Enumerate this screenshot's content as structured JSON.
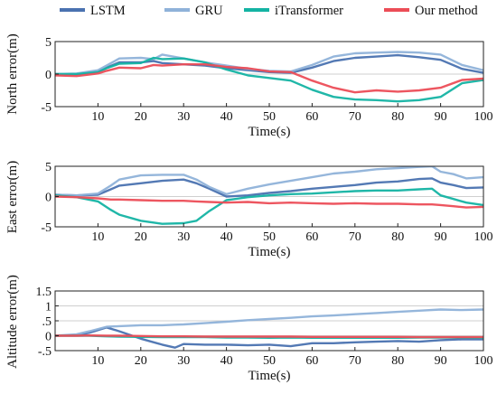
{
  "legend": [
    {
      "name": "LSTM",
      "color": "#4a72b0"
    },
    {
      "name": "GRU",
      "color": "#8fb2d9"
    },
    {
      "name": "iTransformer",
      "color": "#14b3a3"
    },
    {
      "name": "Our method",
      "color": "#ec4d57"
    }
  ],
  "chart_data": [
    {
      "type": "line",
      "xlabel": "Time(s)",
      "ylabel": "North error(m)",
      "xlim": [
        0,
        100
      ],
      "ylim": [
        -5,
        5
      ],
      "xticks": [
        10,
        20,
        30,
        40,
        50,
        60,
        70,
        80,
        90,
        100
      ],
      "yticks": [
        -5,
        0,
        5
      ],
      "grid_y": [
        0
      ],
      "x": [
        0,
        5,
        10,
        12,
        15,
        20,
        23,
        25,
        30,
        35,
        40,
        45,
        50,
        55,
        60,
        65,
        70,
        75,
        80,
        85,
        90,
        95,
        100
      ],
      "series": [
        {
          "name": "LSTM",
          "color": "#4a72b0",
          "values": [
            0,
            0,
            0.4,
            1.0,
            1.8,
            1.8,
            2.0,
            1.7,
            1.5,
            1.3,
            0.9,
            0.6,
            0.3,
            0.2,
            1.0,
            2.0,
            2.5,
            2.7,
            2.9,
            2.6,
            2.2,
            0.8,
            0.2
          ]
        },
        {
          "name": "GRU",
          "color": "#8fb2d9",
          "values": [
            0,
            0.1,
            0.6,
            1.3,
            2.4,
            2.5,
            2.3,
            3.0,
            2.4,
            1.8,
            1.3,
            0.8,
            0.5,
            0.4,
            1.4,
            2.7,
            3.2,
            3.3,
            3.4,
            3.3,
            3.0,
            1.4,
            0.6
          ]
        },
        {
          "name": "iTransformer",
          "color": "#14b3a3",
          "values": [
            0,
            0,
            0.3,
            0.9,
            1.6,
            1.7,
            2.5,
            2.3,
            2.4,
            1.8,
            0.7,
            -0.2,
            -0.6,
            -1.0,
            -2.4,
            -3.5,
            -3.9,
            -4.0,
            -4.2,
            -4.0,
            -3.5,
            -1.4,
            -0.9
          ]
        },
        {
          "name": "Our method",
          "color": "#ec4d57",
          "values": [
            -0.2,
            -0.3,
            0.1,
            0.5,
            1.0,
            0.9,
            1.4,
            1.3,
            1.5,
            1.5,
            1.1,
            0.9,
            0.4,
            0.3,
            -1.0,
            -2.1,
            -2.8,
            -2.5,
            -2.7,
            -2.5,
            -2.1,
            -0.9,
            -0.7
          ]
        }
      ]
    },
    {
      "type": "line",
      "xlabel": "Time(s)",
      "ylabel": "East error(m)",
      "xlim": [
        0,
        100
      ],
      "ylim": [
        -5,
        5
      ],
      "xticks": [
        10,
        20,
        30,
        40,
        50,
        60,
        70,
        80,
        90,
        100
      ],
      "yticks": [
        -5,
        0,
        5
      ],
      "grid_y": [
        0
      ],
      "x": [
        0,
        5,
        10,
        13,
        15,
        20,
        25,
        30,
        33,
        36,
        40,
        45,
        50,
        55,
        60,
        65,
        70,
        75,
        80,
        85,
        88,
        90,
        93,
        96,
        100
      ],
      "series": [
        {
          "name": "LSTM",
          "color": "#4a72b0",
          "values": [
            0.3,
            0.2,
            0.3,
            1.2,
            1.8,
            2.2,
            2.6,
            2.8,
            2.2,
            1.3,
            0,
            0.2,
            0.6,
            0.9,
            1.3,
            1.6,
            1.9,
            2.3,
            2.5,
            2.9,
            3.0,
            2.3,
            1.9,
            1.4,
            1.5
          ]
        },
        {
          "name": "GRU",
          "color": "#8fb2d9",
          "values": [
            0.3,
            0.2,
            0.5,
            1.8,
            2.8,
            3.5,
            3.6,
            3.6,
            2.8,
            1.6,
            0.4,
            1.3,
            2.0,
            2.6,
            3.2,
            3.8,
            4.1,
            4.5,
            4.7,
            4.9,
            5.0,
            4.1,
            3.7,
            3.0,
            3.2
          ]
        },
        {
          "name": "iTransformer",
          "color": "#14b3a3",
          "values": [
            0.2,
            -0.1,
            -0.8,
            -2.2,
            -3.0,
            -4.0,
            -4.5,
            -4.4,
            -4.0,
            -2.4,
            -0.6,
            -0.1,
            0.2,
            0.4,
            0.5,
            0.7,
            0.9,
            1.0,
            1.0,
            1.2,
            1.3,
            0.2,
            -0.4,
            -1.0,
            -1.4
          ]
        },
        {
          "name": "Our method",
          "color": "#ec4d57",
          "values": [
            0,
            -0.1,
            -0.3,
            -0.5,
            -0.5,
            -0.6,
            -0.7,
            -0.7,
            -0.8,
            -0.9,
            -1.0,
            -0.9,
            -1.1,
            -1.0,
            -1.1,
            -1.2,
            -1.1,
            -1.2,
            -1.2,
            -1.3,
            -1.3,
            -1.4,
            -1.6,
            -1.8,
            -1.7
          ]
        }
      ]
    },
    {
      "type": "line",
      "xlabel": "Time(s)",
      "ylabel": "Altitude error(m)",
      "xlim": [
        0,
        100
      ],
      "ylim": [
        -0.5,
        1.5
      ],
      "xticks": [
        10,
        20,
        30,
        40,
        50,
        60,
        70,
        80,
        90,
        100
      ],
      "yticks": [
        -0.5,
        0,
        0.5,
        1,
        1.5
      ],
      "grid_y": [
        0,
        0.5,
        1
      ],
      "x": [
        0,
        5,
        8,
        12,
        15,
        20,
        25,
        28,
        30,
        35,
        40,
        45,
        50,
        55,
        60,
        65,
        70,
        75,
        80,
        85,
        90,
        95,
        100
      ],
      "series": [
        {
          "name": "LSTM",
          "color": "#4a72b0",
          "values": [
            0,
            0.02,
            0.1,
            0.28,
            0.15,
            -0.1,
            -0.3,
            -0.4,
            -0.28,
            -0.3,
            -0.3,
            -0.32,
            -0.3,
            -0.35,
            -0.25,
            -0.25,
            -0.22,
            -0.2,
            -0.18,
            -0.2,
            -0.15,
            -0.12,
            -0.12
          ]
        },
        {
          "name": "GRU",
          "color": "#8fb2d9",
          "values": [
            0,
            0.05,
            0.15,
            0.3,
            0.32,
            0.35,
            0.35,
            0.37,
            0.38,
            0.42,
            0.47,
            0.52,
            0.56,
            0.6,
            0.65,
            0.68,
            0.72,
            0.76,
            0.8,
            0.84,
            0.88,
            0.86,
            0.88
          ]
        },
        {
          "name": "iTransformer",
          "color": "#14b3a3",
          "values": [
            0,
            0,
            0,
            -0.02,
            -0.03,
            -0.04,
            -0.05,
            -0.05,
            -0.05,
            -0.05,
            -0.06,
            -0.06,
            -0.07,
            -0.06,
            -0.07,
            -0.07,
            -0.07,
            -0.07,
            -0.07,
            -0.06,
            -0.06,
            -0.06,
            -0.07
          ]
        },
        {
          "name": "Our method",
          "color": "#ec4d57",
          "values": [
            0,
            0,
            0.01,
            0,
            0,
            -0.01,
            -0.02,
            -0.02,
            -0.02,
            -0.03,
            -0.03,
            -0.03,
            -0.03,
            -0.03,
            -0.04,
            -0.04,
            -0.04,
            -0.04,
            -0.04,
            -0.05,
            -0.05,
            -0.05,
            -0.05
          ]
        }
      ]
    }
  ]
}
